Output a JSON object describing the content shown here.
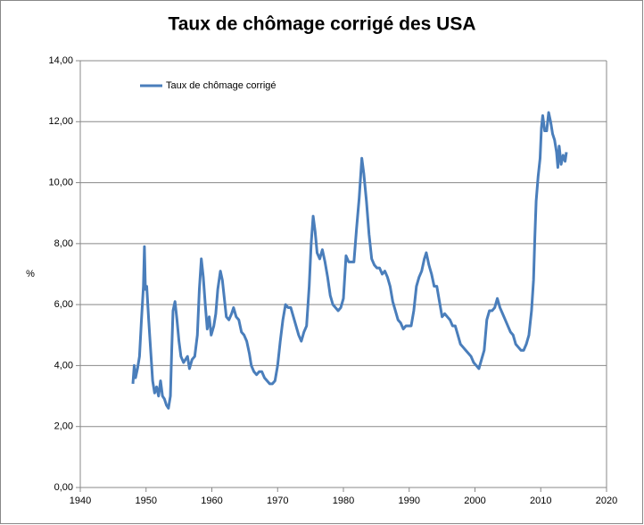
{
  "chart_data": {
    "type": "line",
    "title": "Taux de chômage corrigé des USA",
    "y_label": "%",
    "x": [
      1948.0,
      1948.2,
      1948.4,
      1948.7,
      1949.0,
      1949.3,
      1949.6,
      1949.75,
      1949.9,
      1950.1,
      1950.4,
      1950.7,
      1951.0,
      1951.3,
      1951.6,
      1951.9,
      1952.2,
      1952.5,
      1952.8,
      1953.1,
      1953.4,
      1953.7,
      1953.9,
      1954.1,
      1954.4,
      1954.7,
      1955.0,
      1955.3,
      1955.7,
      1956.0,
      1956.3,
      1956.6,
      1957.0,
      1957.4,
      1957.8,
      1958.1,
      1958.4,
      1958.7,
      1959.0,
      1959.3,
      1959.6,
      1959.9,
      1960.3,
      1960.6,
      1960.9,
      1961.3,
      1961.6,
      1961.9,
      1962.2,
      1962.6,
      1963.0,
      1963.3,
      1963.7,
      1964.1,
      1964.5,
      1964.9,
      1965.3,
      1965.7,
      1966.0,
      1966.4,
      1966.8,
      1967.2,
      1967.6,
      1968.0,
      1968.4,
      1968.8,
      1969.2,
      1969.6,
      1970.0,
      1970.4,
      1970.8,
      1971.2,
      1971.6,
      1972.0,
      1972.4,
      1972.8,
      1973.2,
      1973.6,
      1974.0,
      1974.4,
      1974.8,
      1975.1,
      1975.4,
      1975.7,
      1976.0,
      1976.4,
      1976.8,
      1977.2,
      1977.6,
      1978.0,
      1978.4,
      1978.8,
      1979.2,
      1979.6,
      1980.0,
      1980.4,
      1980.8,
      1981.2,
      1981.6,
      1982.0,
      1982.4,
      1982.8,
      1983.1,
      1983.5,
      1983.9,
      1984.3,
      1984.7,
      1985.1,
      1985.5,
      1985.9,
      1986.3,
      1986.7,
      1987.1,
      1987.5,
      1987.9,
      1988.3,
      1988.7,
      1989.1,
      1989.5,
      1989.9,
      1990.3,
      1990.7,
      1991.1,
      1991.5,
      1991.9,
      1992.3,
      1992.6,
      1993.0,
      1993.4,
      1993.8,
      1994.2,
      1994.6,
      1995.0,
      1995.4,
      1995.8,
      1996.2,
      1996.6,
      1997.0,
      1997.4,
      1997.8,
      1998.2,
      1998.6,
      1999.0,
      1999.4,
      1999.8,
      2000.2,
      2000.6,
      2001.0,
      2001.4,
      2001.8,
      2002.2,
      2002.6,
      2003.0,
      2003.4,
      2003.8,
      2004.2,
      2004.6,
      2005.0,
      2005.4,
      2005.8,
      2006.2,
      2006.6,
      2007.0,
      2007.4,
      2007.8,
      2008.2,
      2008.6,
      2008.9,
      2009.1,
      2009.3,
      2009.6,
      2009.9,
      2010.1,
      2010.3,
      2010.6,
      2010.9,
      2011.2,
      2011.5,
      2011.8,
      2012.1,
      2012.4,
      2012.6,
      2012.8,
      2013.1,
      2013.4,
      2013.7,
      2013.9
    ],
    "series": [
      {
        "name": "Taux de chômage corrigé",
        "color": "#4a7ebb",
        "values": [
          3.4,
          4.0,
          3.6,
          3.9,
          4.3,
          5.5,
          6.6,
          7.9,
          6.5,
          6.6,
          5.5,
          4.5,
          3.5,
          3.1,
          3.3,
          3.0,
          3.5,
          3.0,
          2.9,
          2.7,
          2.6,
          3.0,
          4.5,
          5.8,
          6.1,
          5.5,
          4.8,
          4.3,
          4.1,
          4.2,
          4.3,
          3.9,
          4.2,
          4.3,
          5.0,
          6.5,
          7.5,
          6.9,
          6.0,
          5.2,
          5.6,
          5.0,
          5.3,
          5.7,
          6.5,
          7.1,
          6.8,
          6.2,
          5.6,
          5.5,
          5.7,
          5.9,
          5.6,
          5.5,
          5.1,
          5.0,
          4.8,
          4.4,
          4.0,
          3.8,
          3.7,
          3.8,
          3.8,
          3.6,
          3.5,
          3.4,
          3.4,
          3.5,
          4.0,
          4.8,
          5.5,
          6.0,
          5.9,
          5.9,
          5.6,
          5.3,
          5.0,
          4.8,
          5.1,
          5.3,
          6.6,
          8.0,
          8.9,
          8.4,
          7.7,
          7.5,
          7.8,
          7.4,
          6.9,
          6.3,
          6.0,
          5.9,
          5.8,
          5.9,
          6.2,
          7.6,
          7.4,
          7.4,
          7.4,
          8.5,
          9.5,
          10.8,
          10.3,
          9.4,
          8.3,
          7.5,
          7.3,
          7.2,
          7.2,
          7.0,
          7.1,
          6.9,
          6.6,
          6.1,
          5.8,
          5.5,
          5.4,
          5.2,
          5.3,
          5.3,
          5.3,
          5.8,
          6.6,
          6.9,
          7.1,
          7.5,
          7.7,
          7.3,
          7.0,
          6.6,
          6.6,
          6.1,
          5.6,
          5.7,
          5.6,
          5.5,
          5.3,
          5.3,
          5.0,
          4.7,
          4.6,
          4.5,
          4.4,
          4.3,
          4.1,
          4.0,
          3.9,
          4.2,
          4.5,
          5.5,
          5.8,
          5.8,
          5.9,
          6.2,
          5.9,
          5.7,
          5.5,
          5.3,
          5.1,
          5.0,
          4.7,
          4.6,
          4.5,
          4.5,
          4.7,
          5.0,
          5.8,
          6.8,
          8.2,
          9.4,
          10.2,
          10.8,
          11.8,
          12.2,
          11.7,
          11.7,
          12.3,
          12.0,
          11.6,
          11.4,
          11.0,
          10.5,
          11.2,
          10.6,
          10.9,
          10.7,
          11.0
        ]
      }
    ],
    "xlim": [
      1940,
      2020
    ],
    "xticks": [
      1940,
      1950,
      1960,
      1970,
      1980,
      1990,
      2000,
      2010,
      2020
    ],
    "ylim": [
      0,
      14
    ],
    "yticks": [
      {
        "value": 0,
        "label": "0,00"
      },
      {
        "value": 2,
        "label": "2,00"
      },
      {
        "value": 4,
        "label": "4,00"
      },
      {
        "value": 6,
        "label": "6,00"
      },
      {
        "value": 8,
        "label": "8,00"
      },
      {
        "value": 10,
        "label": "10,00"
      },
      {
        "value": 12,
        "label": "12,00"
      },
      {
        "value": 14,
        "label": "14,00"
      }
    ],
    "grid": true,
    "legend": "top-left"
  }
}
